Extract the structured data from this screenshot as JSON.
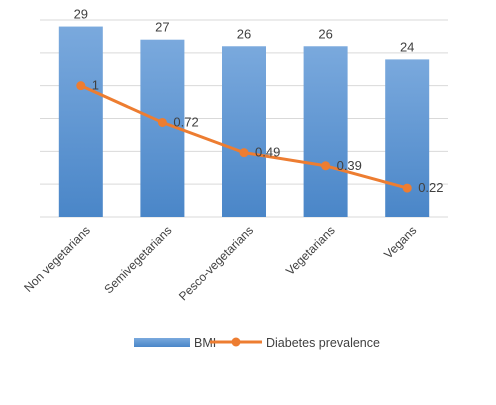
{
  "chart_data": {
    "type": "bar",
    "categories": [
      "Non vegetarians",
      "Semivegetarians",
      "Pesco-vegetarians",
      "Vegetarians",
      "Vegans"
    ],
    "series": [
      {
        "name": "BMI",
        "type": "bar",
        "values": [
          29,
          27,
          26,
          26,
          24
        ],
        "labels": [
          "29",
          "27",
          "26",
          "26",
          "24"
        ],
        "color": "#5b9bd5"
      },
      {
        "name": "Diabetes prevalence",
        "type": "line",
        "values": [
          1,
          0.72,
          0.49,
          0.39,
          0.22
        ],
        "labels": [
          "1",
          "0.72",
          "0.49",
          "0.39",
          "0.22"
        ],
        "color": "#ed7d31"
      }
    ],
    "ylim_bar": [
      0,
      30
    ],
    "ylim_line": [
      0,
      1.5
    ],
    "grid": true,
    "legend": "bottom"
  }
}
